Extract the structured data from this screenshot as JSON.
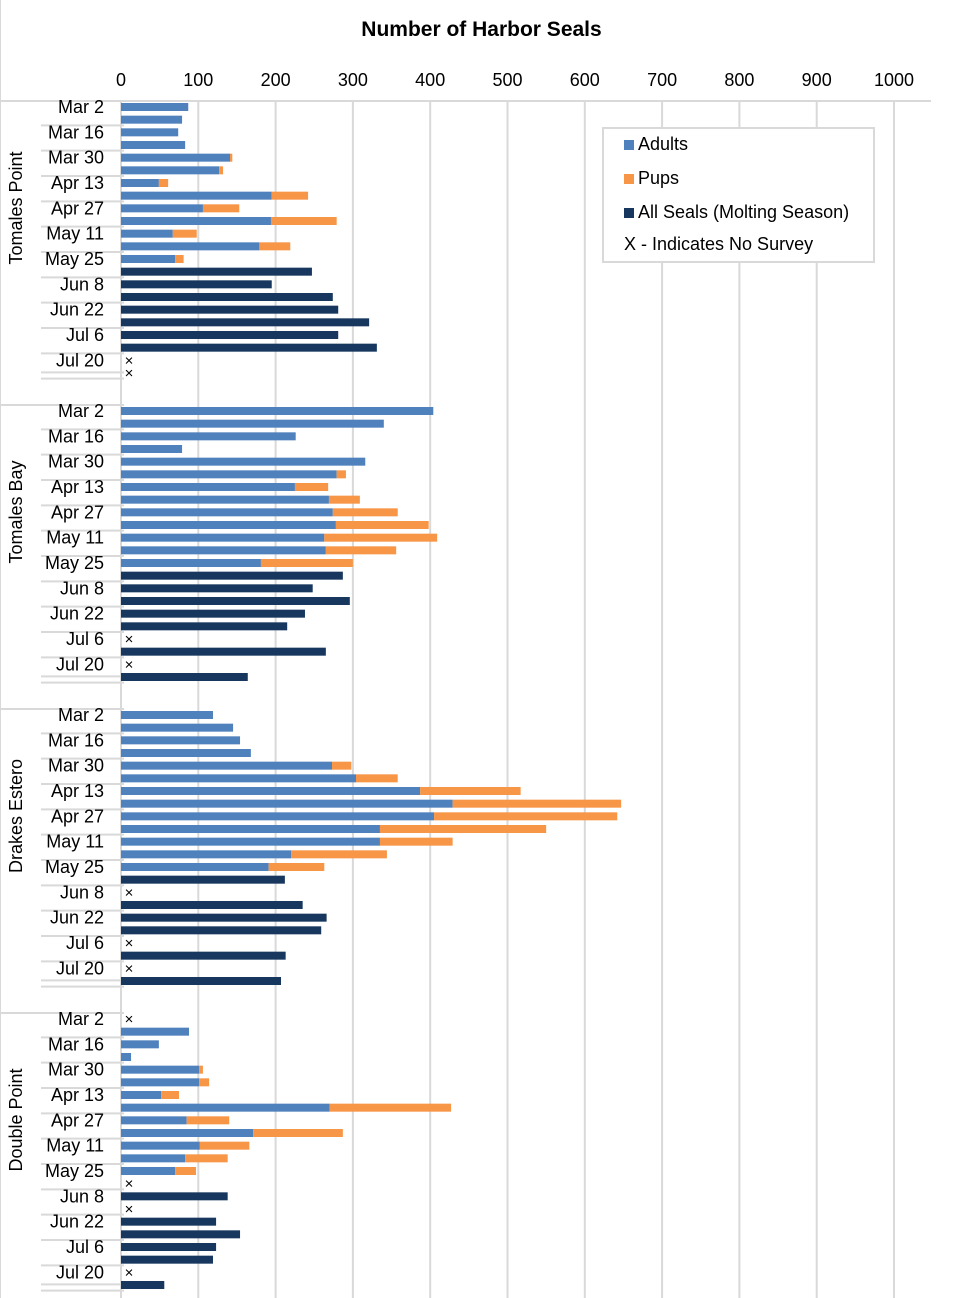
{
  "chart_data": {
    "type": "bar",
    "orientation": "horizontal",
    "stacked": true,
    "title": "Number of Harbor Seals",
    "xlim": [
      0,
      1000
    ],
    "xticks": [
      0,
      100,
      200,
      300,
      400,
      500,
      600,
      700,
      800,
      900,
      1000
    ],
    "grid": true,
    "legend_placement": "top-right",
    "legend": [
      "Adults",
      "Pups",
      "All Seals (Molting Season)",
      "X - Indicates No Survey"
    ],
    "colors": {
      "adults": "#4f81bd",
      "pups": "#f79646",
      "all_seals": "#17375e"
    },
    "date_labels": [
      "Mar 2",
      "Mar 16",
      "Mar 30",
      "Apr 13",
      "Apr 27",
      "May 11",
      "May 25",
      "Jun 8",
      "Jun 22",
      "Jul 6",
      "Jul 20"
    ],
    "groups": [
      {
        "name": "Tomales Point",
        "adults": [
          87,
          79,
          74,
          83,
          141,
          127,
          49,
          195,
          106,
          194,
          67,
          179,
          70,
          null,
          null,
          null,
          null,
          null,
          null,
          null,
          null,
          null
        ],
        "pups": [
          0,
          0,
          0,
          0,
          3,
          5,
          12,
          47,
          47,
          85,
          31,
          40,
          11,
          null,
          null,
          null,
          null,
          null,
          null,
          null,
          null,
          null
        ],
        "all_seals": [
          null,
          null,
          null,
          null,
          null,
          null,
          null,
          null,
          null,
          null,
          null,
          null,
          null,
          247,
          195,
          274,
          281,
          321,
          281,
          331,
          null,
          null
        ],
        "no_survey": [
          20,
          21
        ]
      },
      {
        "name": "Tomales Bay",
        "adults": [
          404,
          340,
          226,
          79,
          316,
          279,
          225,
          269,
          274,
          278,
          263,
          265,
          181,
          null,
          null,
          null,
          null,
          null,
          null,
          null,
          null,
          null
        ],
        "pups": [
          0,
          0,
          0,
          0,
          0,
          12,
          43,
          40,
          84,
          120,
          146,
          91,
          119,
          null,
          null,
          null,
          null,
          null,
          null,
          null,
          null,
          null
        ],
        "all_seals": [
          null,
          null,
          null,
          null,
          null,
          null,
          null,
          null,
          null,
          null,
          null,
          null,
          null,
          287,
          248,
          296,
          238,
          215,
          null,
          265,
          null,
          164
        ],
        "no_survey": [
          18,
          20
        ]
      },
      {
        "name": "Drakes Estero",
        "adults": [
          119,
          145,
          154,
          168,
          273,
          304,
          387,
          429,
          405,
          335,
          335,
          220,
          191,
          null,
          null,
          null,
          null,
          null,
          null,
          null,
          null,
          null
        ],
        "pups": [
          0,
          0,
          0,
          0,
          25,
          54,
          130,
          218,
          237,
          215,
          94,
          124,
          72,
          null,
          null,
          null,
          null,
          null,
          null,
          null,
          null,
          null
        ],
        "all_seals": [
          null,
          null,
          null,
          null,
          null,
          null,
          null,
          null,
          null,
          null,
          null,
          null,
          null,
          212,
          null,
          235,
          266,
          259,
          null,
          213,
          null,
          207
        ],
        "no_survey": [
          14,
          18,
          20
        ]
      },
      {
        "name": "Double Point",
        "adults": [
          null,
          88,
          49,
          13,
          101,
          101,
          52,
          270,
          85,
          171,
          102,
          83,
          70,
          null,
          null,
          null,
          null,
          null,
          null,
          null,
          null,
          null
        ],
        "pups": [
          null,
          0,
          0,
          0,
          5,
          13,
          23,
          157,
          55,
          116,
          64,
          55,
          27,
          null,
          null,
          null,
          null,
          null,
          null,
          null,
          null,
          null
        ],
        "all_seals": [
          null,
          null,
          null,
          null,
          null,
          null,
          null,
          null,
          null,
          null,
          null,
          null,
          null,
          null,
          138,
          null,
          123,
          154,
          123,
          119,
          null,
          56
        ],
        "no_survey": [
          0,
          13,
          15,
          20
        ]
      }
    ]
  }
}
